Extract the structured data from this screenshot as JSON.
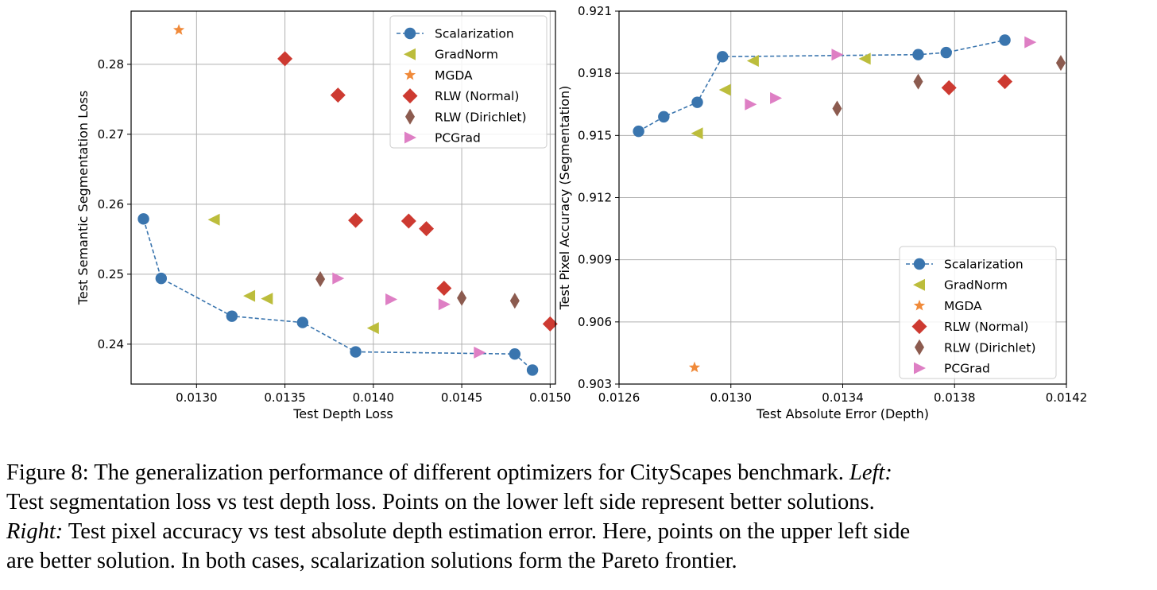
{
  "colors": {
    "scalarization": "#3a75ae",
    "gradnorm": "#bcbd3c",
    "mgda": "#f08a3a",
    "rlw_normal": "#cd3a31",
    "rlw_dirichlet": "#8c5b4f",
    "pcgrad": "#de7fc4",
    "grid": "#b0b0b0"
  },
  "chart_data": [
    {
      "type": "scatter",
      "xlabel": "Test Depth Loss",
      "ylabel": "Test Semantic Segmentation Loss",
      "xlim": [
        0.01263,
        0.01503
      ],
      "ylim": [
        0.2343,
        0.2876
      ],
      "xticks": [
        0.013,
        0.0135,
        0.014,
        0.0145,
        0.015
      ],
      "xtick_labels": [
        "0.0130",
        "0.0135",
        "0.0140",
        "0.0145",
        "0.0150"
      ],
      "yticks": [
        0.24,
        0.25,
        0.26,
        0.27,
        0.28
      ],
      "ytick_labels": [
        "0.24",
        "0.25",
        "0.26",
        "0.27",
        "0.28"
      ],
      "grid": true,
      "legend_position": "top-right",
      "series": [
        {
          "name": "Scalarization",
          "key": "scalarization",
          "marker": "circle",
          "line": "dashed",
          "points": [
            [
              0.0127,
              0.2579
            ],
            [
              0.0128,
              0.2494
            ],
            [
              0.0132,
              0.244
            ],
            [
              0.0136,
              0.2431
            ],
            [
              0.0139,
              0.2389
            ],
            [
              0.0148,
              0.2386
            ],
            [
              0.0149,
              0.2363
            ]
          ]
        },
        {
          "name": "GradNorm",
          "key": "gradnorm",
          "marker": "triangle-left",
          "points": [
            [
              0.0131,
              0.2578
            ],
            [
              0.0133,
              0.2469
            ],
            [
              0.0134,
              0.2465
            ],
            [
              0.014,
              0.2423
            ]
          ]
        },
        {
          "name": "MGDA",
          "key": "mgda",
          "marker": "star",
          "points": [
            [
              0.0129,
              0.2849
            ]
          ]
        },
        {
          "name": "RLW (Normal)",
          "key": "rlw_normal",
          "marker": "diamond",
          "points": [
            [
              0.0135,
              0.2808
            ],
            [
              0.0138,
              0.2756
            ],
            [
              0.0139,
              0.2577
            ],
            [
              0.0142,
              0.2576
            ],
            [
              0.0143,
              0.2565
            ],
            [
              0.0144,
              0.248
            ],
            [
              0.015,
              0.2429
            ]
          ]
        },
        {
          "name": "RLW (Dirichlet)",
          "key": "rlw_dirichlet",
          "marker": "thin-diamond",
          "points": [
            [
              0.0137,
              0.2493
            ],
            [
              0.0145,
              0.2466
            ],
            [
              0.0148,
              0.2462
            ]
          ]
        },
        {
          "name": "PCGrad",
          "key": "pcgrad",
          "marker": "triangle-right",
          "points": [
            [
              0.0138,
              0.2494
            ],
            [
              0.0141,
              0.2464
            ],
            [
              0.0144,
              0.2457
            ],
            [
              0.0146,
              0.2388
            ]
          ]
        }
      ]
    },
    {
      "type": "scatter",
      "xlabel": "Test Absolute Error (Depth)",
      "ylabel": "Test Pixel Accuracy (Segmentation)",
      "xlim": [
        0.0126,
        0.0142
      ],
      "ylim": [
        0.903,
        0.921
      ],
      "xticks": [
        0.0126,
        0.013,
        0.0134,
        0.0138,
        0.0142
      ],
      "xtick_labels": [
        "0.0126",
        "0.0130",
        "0.0134",
        "0.0138",
        "0.0142"
      ],
      "yticks": [
        0.903,
        0.906,
        0.909,
        0.912,
        0.915,
        0.918,
        0.921
      ],
      "ytick_labels": [
        "0.903",
        "0.906",
        "0.909",
        "0.912",
        "0.915",
        "0.918",
        "0.921"
      ],
      "grid": true,
      "legend_position": "lower-right",
      "series": [
        {
          "name": "Scalarization",
          "key": "scalarization",
          "marker": "circle",
          "line": "dashed",
          "points": [
            [
              0.01267,
              0.9152
            ],
            [
              0.01276,
              0.9159
            ],
            [
              0.01288,
              0.9166
            ],
            [
              0.01297,
              0.9188
            ],
            [
              0.01367,
              0.9189
            ],
            [
              0.01377,
              0.919
            ],
            [
              0.01398,
              0.9196
            ]
          ]
        },
        {
          "name": "GradNorm",
          "key": "gradnorm",
          "marker": "triangle-left",
          "points": [
            [
              0.01288,
              0.9151
            ],
            [
              0.01298,
              0.9172
            ],
            [
              0.01308,
              0.9186
            ],
            [
              0.01348,
              0.9187
            ]
          ]
        },
        {
          "name": "MGDA",
          "key": "mgda",
          "marker": "star",
          "points": [
            [
              0.01287,
              0.9038
            ]
          ]
        },
        {
          "name": "RLW (Normal)",
          "key": "rlw_normal",
          "marker": "diamond",
          "points": [
            [
              0.01378,
              0.9173
            ],
            [
              0.01398,
              0.9176
            ]
          ]
        },
        {
          "name": "RLW (Dirichlet)",
          "key": "rlw_dirichlet",
          "marker": "thin-diamond",
          "points": [
            [
              0.01338,
              0.9163
            ],
            [
              0.01367,
              0.9176
            ],
            [
              0.01418,
              0.9185
            ]
          ]
        },
        {
          "name": "PCGrad",
          "key": "pcgrad",
          "marker": "triangle-right",
          "points": [
            [
              0.01307,
              0.9165
            ],
            [
              0.01316,
              0.9168
            ],
            [
              0.01338,
              0.9189
            ],
            [
              0.01407,
              0.9195
            ]
          ]
        }
      ]
    }
  ],
  "caption": {
    "label": "Figure 8:",
    "line1": "The generalization performance of different optimizers for CityScapes benchmark.",
    "left_label": "Left:",
    "line2": "Test segmentation loss vs test depth loss. Points on the lower left side represent better solutions.",
    "right_label": "Right:",
    "line3": "Test pixel accuracy vs test absolute depth estimation error. Here, points on the upper left side",
    "line4": "are better solution. In both cases, scalarization solutions form the Pareto frontier."
  }
}
